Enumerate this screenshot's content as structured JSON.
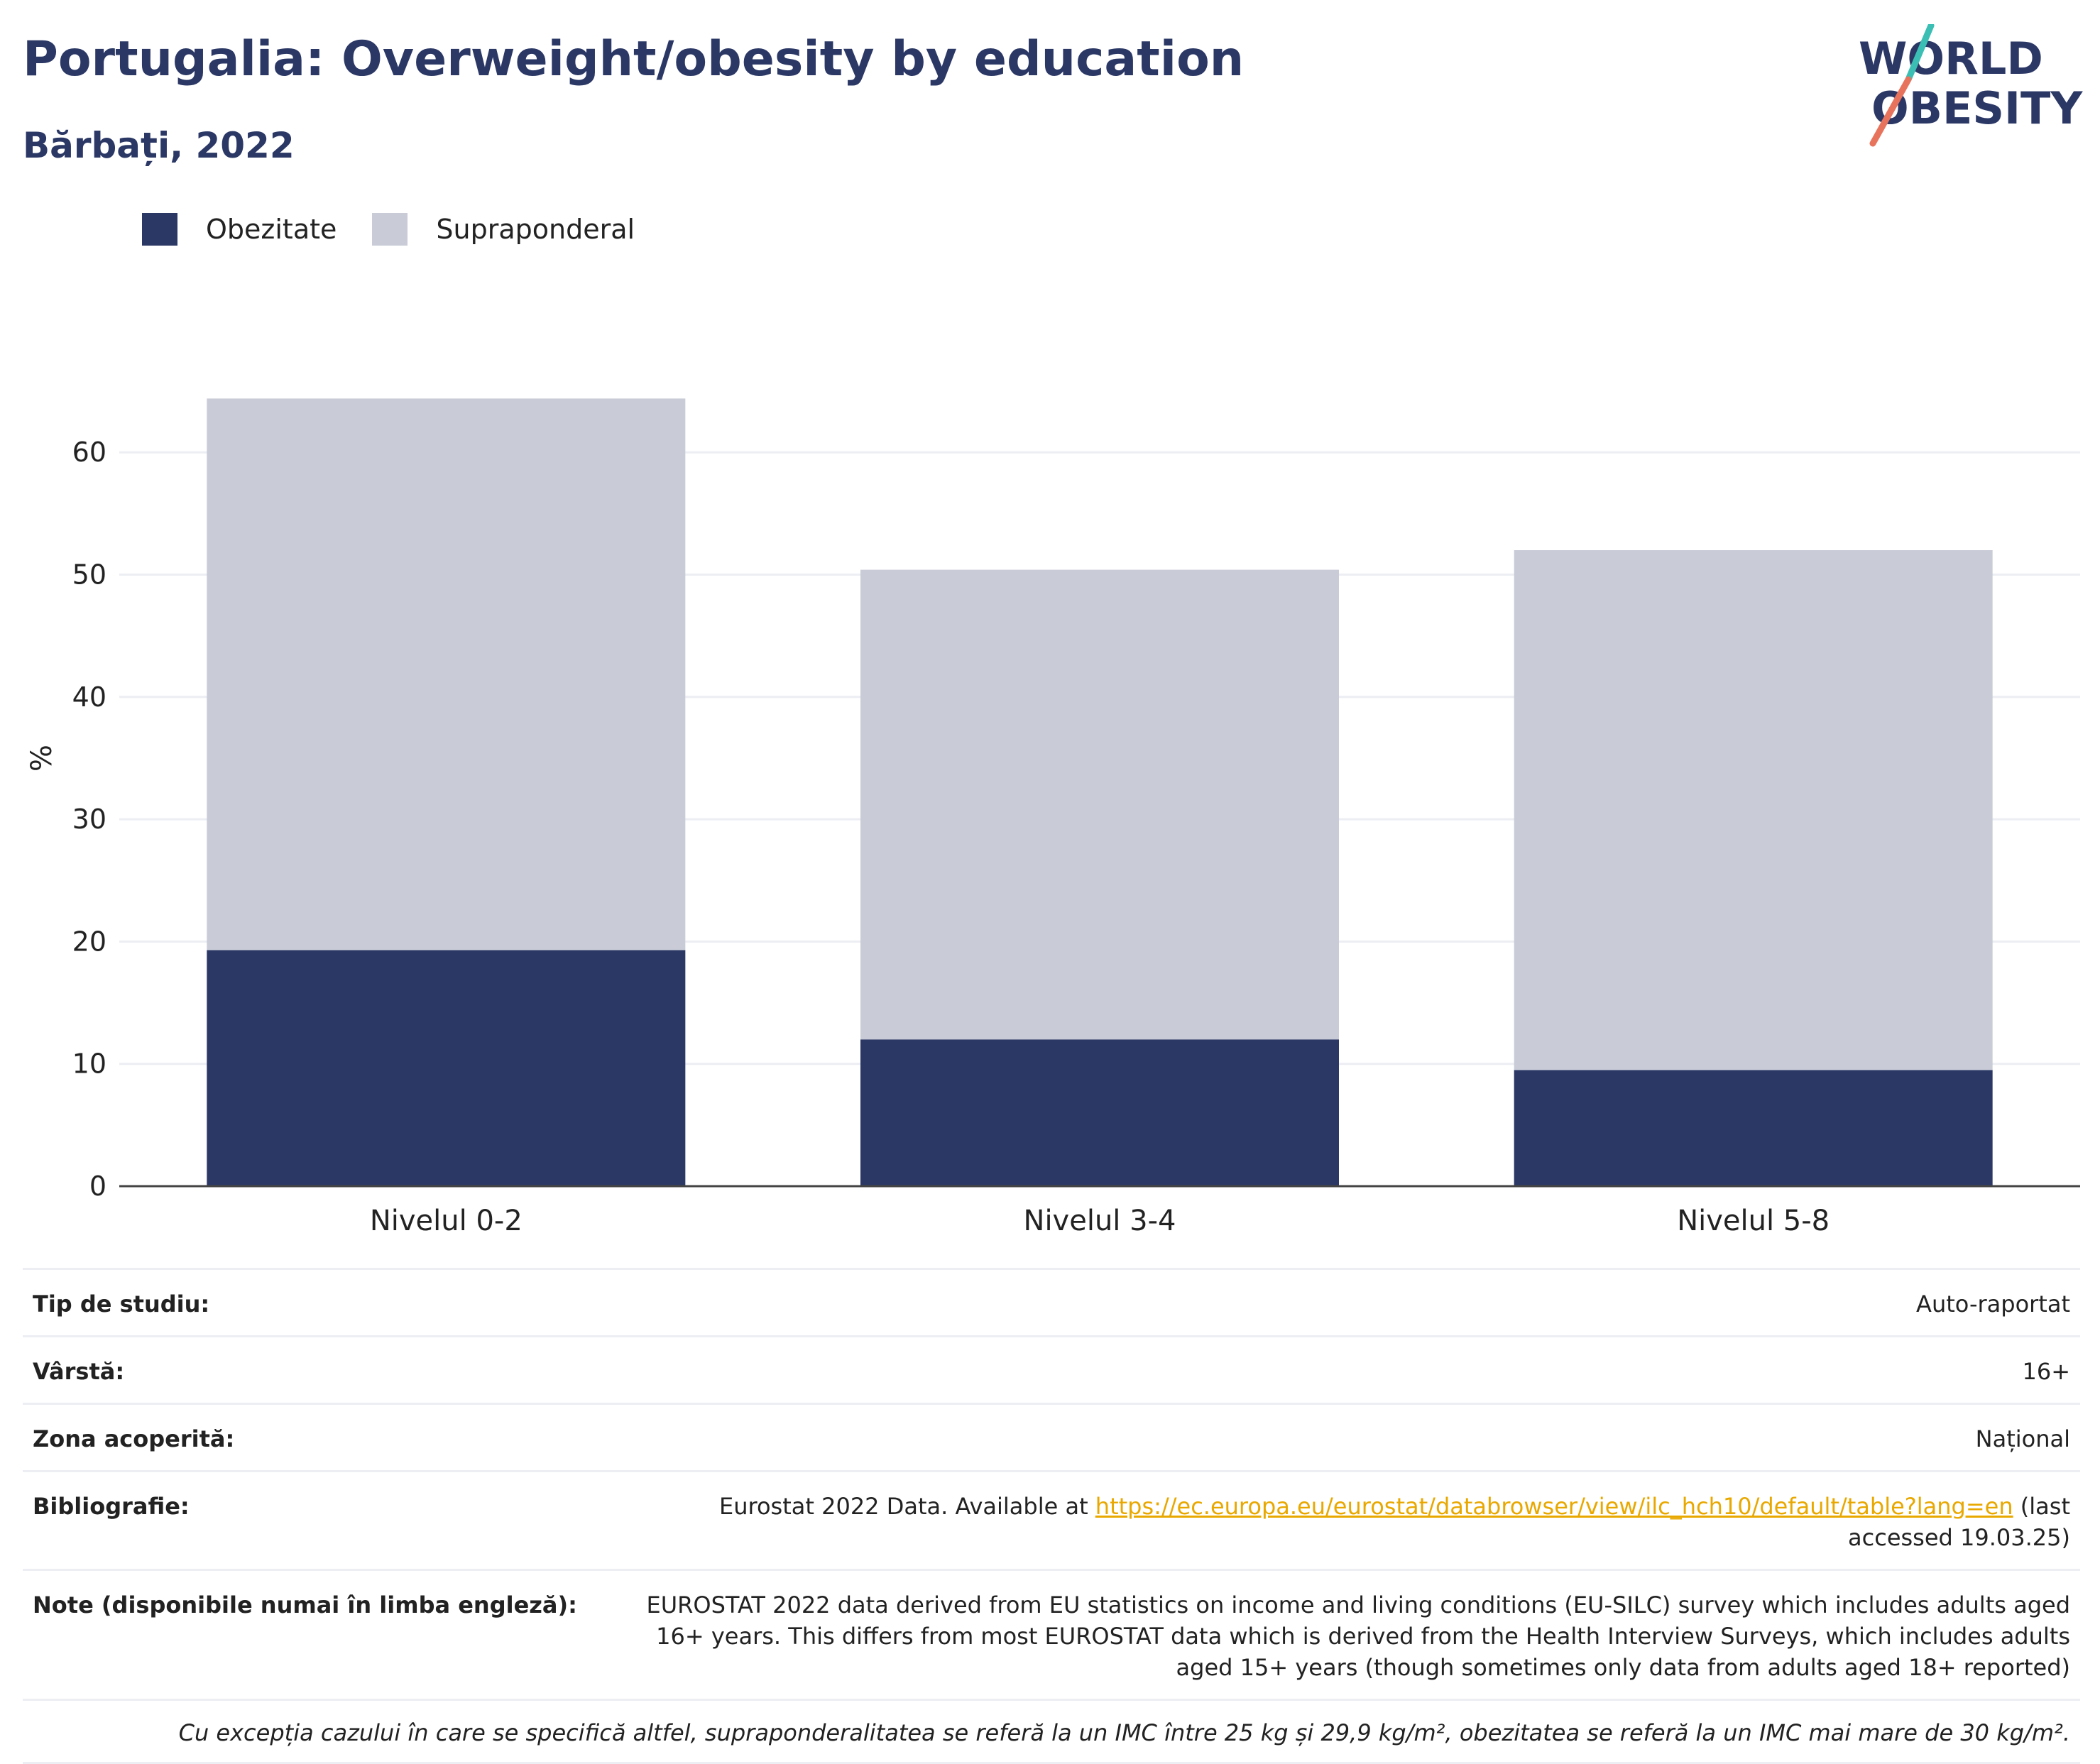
{
  "header": {
    "title": "Portugalia: Overweight/obesity by education",
    "subtitle": "Bărbați, 2022"
  },
  "logo": {
    "line1": "WORLD",
    "line2": "OBESITY",
    "accent_teal": "#3bbfb4",
    "accent_coral": "#e8735d"
  },
  "legend": {
    "items": [
      {
        "label": "Obezitate",
        "color": "#2b3865"
      },
      {
        "label": "Supraponderal",
        "color": "#c9ccd7"
      }
    ]
  },
  "chart_data": {
    "type": "bar",
    "stacked": true,
    "categories": [
      "Nivelul 0-2",
      "Nivelul 3-4",
      "Nivelul 5-8"
    ],
    "series": [
      {
        "name": "Obezitate",
        "color": "#2b3865",
        "values": [
          19.3,
          12.0,
          9.5
        ]
      },
      {
        "name": "Supraponderal",
        "color": "#c9ccd7",
        "values": [
          45.1,
          38.4,
          42.5
        ]
      }
    ],
    "ylabel": "%",
    "ylim": [
      0,
      70
    ],
    "yticks": [
      0,
      10,
      20,
      30,
      40,
      50,
      60
    ],
    "grid": true,
    "legend_position": "top-left"
  },
  "meta": {
    "rows": [
      {
        "label": "Tip de studiu:",
        "value": "Auto-raportat"
      },
      {
        "label": "Vârstă:",
        "value": "16+"
      },
      {
        "label": "Zona acoperită:",
        "value": "Național"
      }
    ],
    "bibliography": {
      "label": "Bibliografie:",
      "prefix": "Eurostat 2022 Data. Available at ",
      "link": "https://ec.europa.eu/eurostat/databrowser/view/ilc_hch10/default/table?lang=en",
      "suffix": " (last accessed 19.03.25)"
    },
    "notes": {
      "label": "Note (disponibile numai în limba engleză):",
      "value": "EUROSTAT 2022 data derived from EU statistics on income and living conditions (EU-SILC) survey which includes adults aged 16+ years. This differs from most EUROSTAT data which is derived from the Health Interview Surveys, which includes adults aged 15+ years (though sometimes only data from adults aged 18+ reported)"
    },
    "footnote": "Cu excepția cazului în care se specifică altfel, supraponderalitatea se referă la un IMC între 25 kg și 29,9 kg/m², obezitatea se referă la un IMC mai mare de 30 kg/m²."
  }
}
